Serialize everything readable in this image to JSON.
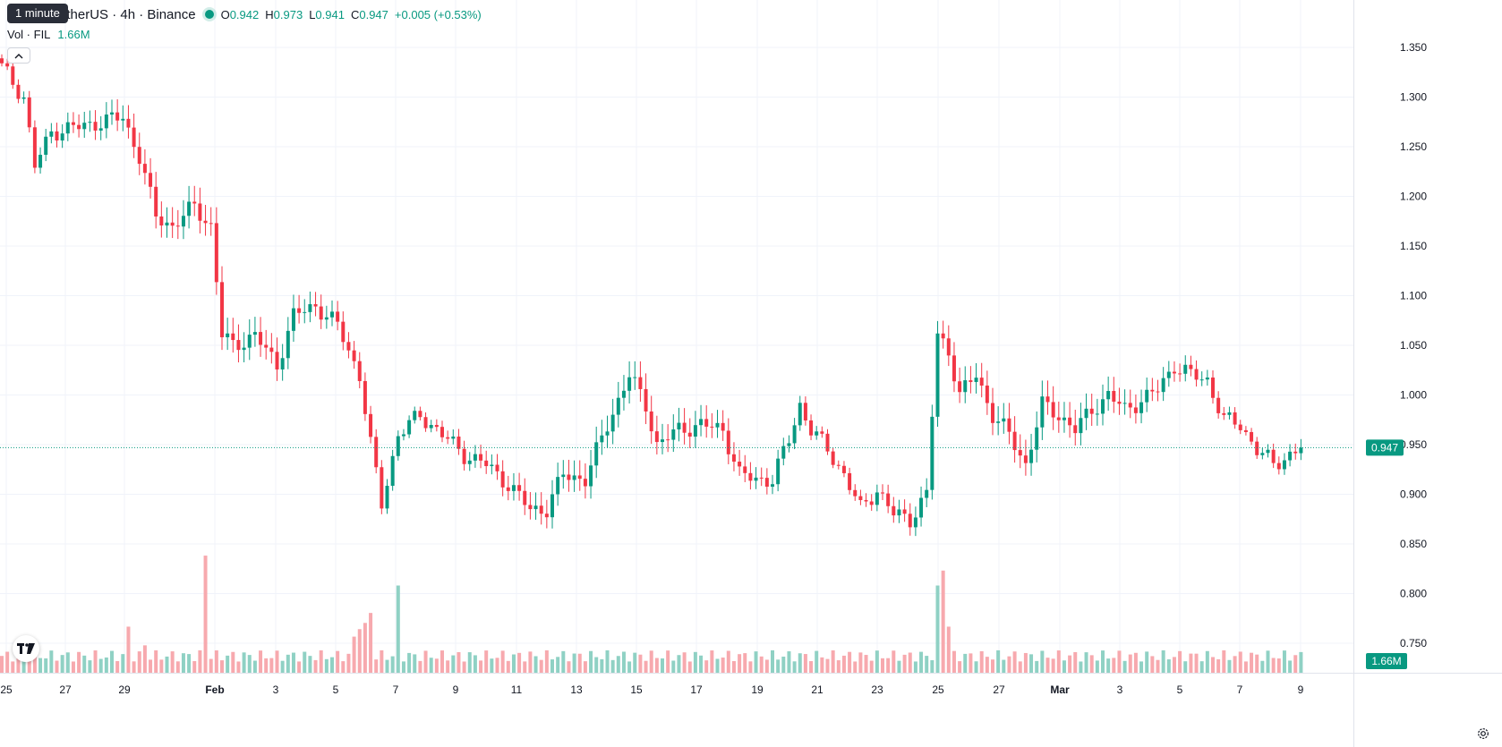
{
  "header": {
    "tooltip": "1 minute",
    "symbol_title": "etherUS · 4h · Binance",
    "ohlc": [
      {
        "key": "O",
        "value": "0.942"
      },
      {
        "key": "H",
        "value": "0.973"
      },
      {
        "key": "L",
        "value": "0.941"
      },
      {
        "key": "C",
        "value": "0.947"
      }
    ],
    "change": "+0.005 (+0.53%)",
    "volume_label": "Vol · FIL",
    "volume_value": "1.66M",
    "collapse_icon": "chevron-up-icon"
  },
  "colors": {
    "up": "#089981",
    "down": "#f23645",
    "up_volume": "#8fd1c4",
    "down_volume": "#f7a9ae",
    "grid": "#f0f3fa"
  },
  "chart_data": {
    "type": "candlestick",
    "interval": "4h",
    "grid": true,
    "price_axis": {
      "position": "right",
      "ticks": [
        "1.350",
        "1.300",
        "1.250",
        "1.200",
        "1.150",
        "1.100",
        "1.050",
        "1.000",
        "0.950",
        "0.900",
        "0.850",
        "0.800",
        "0.750"
      ],
      "ylim": [
        0.727,
        1.367
      ]
    },
    "time_axis": {
      "ticks": [
        "25",
        "27",
        "29",
        "Feb",
        "3",
        "5",
        "7",
        "9",
        "11",
        "13",
        "15",
        "17",
        "19",
        "21",
        "23",
        "25",
        "27",
        "Mar",
        "3",
        "5",
        "7",
        "9"
      ],
      "bold_ticks": [
        "Feb",
        "Mar"
      ]
    },
    "last_price": {
      "value": 0.947,
      "label": "0.947"
    },
    "last_volume": {
      "value": 1.66,
      "label": "1.66M"
    },
    "volume_scale_max_millions": 14,
    "anchors": [
      [
        0,
        1.33
      ],
      [
        4,
        1.3
      ],
      [
        6,
        1.23
      ],
      [
        9,
        1.265
      ],
      [
        14,
        1.27
      ],
      [
        18,
        1.275
      ],
      [
        22,
        1.28
      ],
      [
        25,
        1.24
      ],
      [
        28,
        1.18
      ],
      [
        31,
        1.17
      ],
      [
        35,
        1.19
      ],
      [
        38,
        1.17
      ],
      [
        40,
        1.06
      ],
      [
        42,
        1.05
      ],
      [
        46,
        1.06
      ],
      [
        50,
        1.03
      ],
      [
        53,
        1.08
      ],
      [
        57,
        1.09
      ],
      [
        61,
        1.07
      ],
      [
        65,
        1.02
      ],
      [
        67,
        0.95
      ],
      [
        69,
        0.89
      ],
      [
        72,
        0.96
      ],
      [
        76,
        0.98
      ],
      [
        80,
        0.96
      ],
      [
        84,
        0.94
      ],
      [
        88,
        0.93
      ],
      [
        92,
        0.91
      ],
      [
        96,
        0.885
      ],
      [
        99,
        0.885
      ],
      [
        102,
        0.92
      ],
      [
        106,
        0.915
      ],
      [
        110,
        0.97
      ],
      [
        114,
        1.02
      ],
      [
        117,
        0.99
      ],
      [
        119,
        0.95
      ],
      [
        123,
        0.965
      ],
      [
        127,
        0.97
      ],
      [
        131,
        0.965
      ],
      [
        134,
        0.92
      ],
      [
        137,
        0.915
      ],
      [
        140,
        0.915
      ],
      [
        143,
        0.955
      ],
      [
        145,
        0.99
      ],
      [
        147,
        0.965
      ],
      [
        150,
        0.945
      ],
      [
        153,
        0.92
      ],
      [
        156,
        0.885
      ],
      [
        159,
        0.905
      ],
      [
        162,
        0.88
      ],
      [
        165,
        0.875
      ],
      [
        168,
        0.9
      ],
      [
        170,
        1.06
      ],
      [
        172,
        1.045
      ],
      [
        174,
        1.0
      ],
      [
        177,
        1.02
      ],
      [
        180,
        0.98
      ],
      [
        183,
        0.96
      ],
      [
        186,
        0.93
      ],
      [
        189,
        0.99
      ],
      [
        192,
        0.98
      ],
      [
        195,
        0.965
      ],
      [
        198,
        0.985
      ],
      [
        201,
        1.0
      ],
      [
        204,
        0.985
      ],
      [
        207,
        0.995
      ],
      [
        210,
        1.005
      ],
      [
        213,
        1.03
      ],
      [
        216,
        1.02
      ],
      [
        219,
        1.015
      ],
      [
        222,
        0.975
      ],
      [
        225,
        0.97
      ],
      [
        228,
        0.945
      ],
      [
        231,
        0.93
      ],
      [
        234,
        0.94
      ],
      [
        236,
        0.947
      ]
    ],
    "high_volume_bars": [
      {
        "index": 23,
        "millions": 3.7
      },
      {
        "index": 26,
        "millions": 2.2
      },
      {
        "index": 36,
        "millions": 1.8
      },
      {
        "index": 37,
        "millions": 9.4
      },
      {
        "index": 64,
        "millions": 2.9
      },
      {
        "index": 65,
        "millions": 3.5
      },
      {
        "index": 66,
        "millions": 4.0
      },
      {
        "index": 67,
        "millions": 4.8
      },
      {
        "index": 72,
        "millions": 7.0
      },
      {
        "index": 170,
        "millions": 7.0
      },
      {
        "index": 171,
        "millions": 8.2
      },
      {
        "index": 172,
        "millions": 3.7
      }
    ]
  }
}
